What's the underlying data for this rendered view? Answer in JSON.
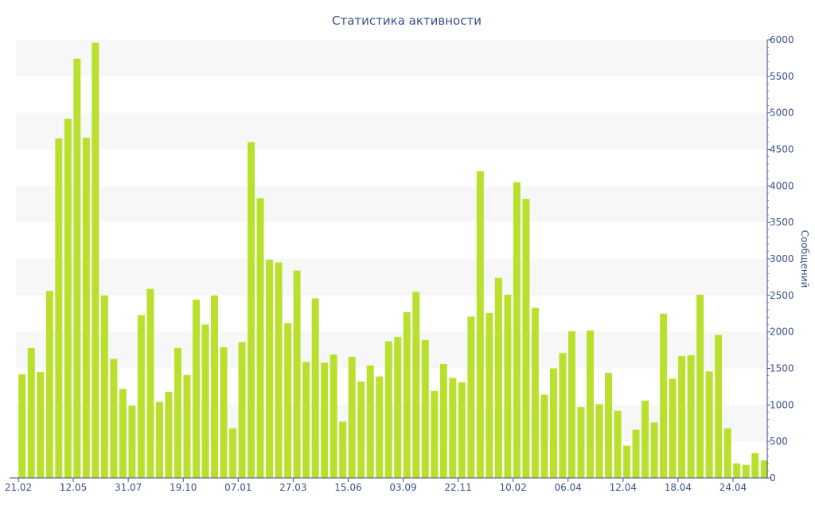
{
  "chart_data": {
    "type": "bar",
    "title": "Статистика активности",
    "ylabel": "Сообщений",
    "xlabel": "",
    "ylim": [
      0,
      6000
    ],
    "y_ticks": [
      0,
      500,
      1000,
      1500,
      2000,
      2500,
      3000,
      3500,
      4000,
      4500,
      5000,
      5500,
      6000
    ],
    "y_axis_side": "right",
    "x_tick_labels": [
      {
        "label": "21.02",
        "index": 0
      },
      {
        "label": "12.05",
        "index": 6
      },
      {
        "label": "31.07",
        "index": 12
      },
      {
        "label": "19.10",
        "index": 18
      },
      {
        "label": "07.01",
        "index": 24
      },
      {
        "label": "27.03",
        "index": 30
      },
      {
        "label": "15.06",
        "index": 36
      },
      {
        "label": "03.09",
        "index": 42
      },
      {
        "label": "22.11",
        "index": 48
      },
      {
        "label": "10.02",
        "index": 54
      },
      {
        "label": "06.04",
        "index": 60
      },
      {
        "label": "12.04",
        "index": 66
      },
      {
        "label": "18.04",
        "index": 72
      },
      {
        "label": "24.04",
        "index": 78
      }
    ],
    "values": [
      1420,
      1780,
      1450,
      2560,
      4650,
      4920,
      5740,
      4660,
      5960,
      2500,
      1630,
      1220,
      990,
      2230,
      2590,
      1040,
      1180,
      1780,
      1410,
      2440,
      2100,
      2500,
      1790,
      680,
      1860,
      4600,
      3830,
      2990,
      2950,
      2120,
      2840,
      1590,
      2460,
      1580,
      1690,
      770,
      1660,
      1320,
      1540,
      1390,
      1870,
      1930,
      2270,
      2550,
      1890,
      1190,
      1560,
      1370,
      1310,
      2210,
      4200,
      2260,
      2740,
      2510,
      4050,
      3820,
      2330,
      1140,
      1500,
      1710,
      2010,
      970,
      2020,
      1010,
      1440,
      920,
      440,
      660,
      1060,
      760,
      2250,
      1360,
      1670,
      1680,
      2510,
      1460,
      1960,
      680,
      200,
      180,
      340,
      240
    ],
    "bar_color": "#b8e02c",
    "band_color": "#f7f7f7",
    "text_color": "#3b4e8c",
    "grid": "alternating horizontal bands",
    "legend": "none"
  }
}
